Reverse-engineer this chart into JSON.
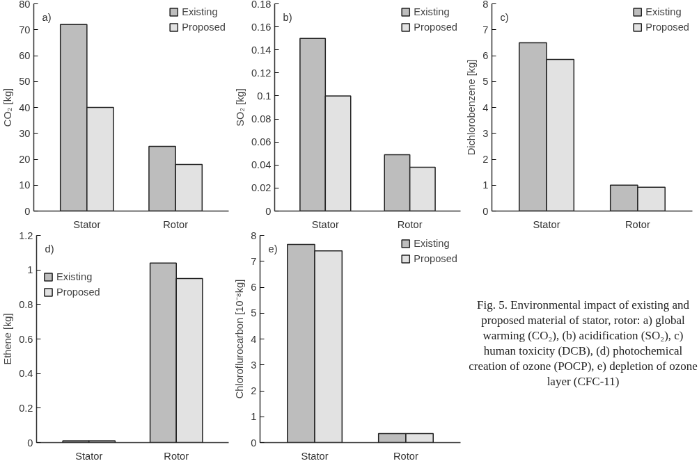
{
  "chart_data": [
    {
      "type": "bar",
      "categories": [
        "Stator",
        "Rotor"
      ],
      "ylabel": "CO₂ [kg]",
      "ylim": [
        0,
        80
      ],
      "yticks": [
        0,
        10,
        20,
        30,
        40,
        50,
        60,
        70,
        80
      ],
      "grid": false,
      "legend": "top right",
      "annotations": [
        "a)"
      ],
      "series": [
        {
          "name": "Existing",
          "color": "#bdbdbd",
          "values": [
            72,
            25
          ]
        },
        {
          "name": "Proposed",
          "color": "#e2e2e2",
          "values": [
            40,
            18
          ]
        }
      ]
    },
    {
      "type": "bar",
      "categories": [
        "Stator",
        "Rotor"
      ],
      "ylabel": "SO₂ [kg]",
      "ylim": [
        0,
        0.18
      ],
      "yticks": [
        0,
        0.02,
        0.04,
        0.06,
        0.08,
        0.1,
        0.12,
        0.14,
        0.16,
        0.18
      ],
      "grid": false,
      "legend": "top right",
      "annotations": [
        "b)"
      ],
      "series": [
        {
          "name": "Existing",
          "color": "#bdbdbd",
          "values": [
            0.15,
            0.049
          ]
        },
        {
          "name": "Proposed",
          "color": "#e2e2e2",
          "values": [
            0.1,
            0.038
          ]
        }
      ]
    },
    {
      "type": "bar",
      "categories": [
        "Stator",
        "Rotor"
      ],
      "ylabel": "Dichlorobenzene [kg]",
      "ylim": [
        0,
        8
      ],
      "yticks": [
        0,
        1,
        2,
        3,
        4,
        5,
        6,
        7,
        8
      ],
      "grid": false,
      "legend": "top right",
      "annotations": [
        "c)"
      ],
      "series": [
        {
          "name": "Existing",
          "color": "#bdbdbd",
          "values": [
            6.5,
            1.0
          ]
        },
        {
          "name": "Proposed",
          "color": "#e2e2e2",
          "values": [
            5.85,
            0.92
          ]
        }
      ]
    },
    {
      "type": "bar",
      "categories": [
        "Stator",
        "Rotor"
      ],
      "ylabel": "Ethene [kg]",
      "ylim": [
        0,
        1.2
      ],
      "yticks": [
        0,
        0.2,
        0.4,
        0.6,
        0.8,
        1,
        1.2
      ],
      "grid": false,
      "legend": "top left",
      "annotations": [
        "d)"
      ],
      "series": [
        {
          "name": "Existing",
          "color": "#bdbdbd",
          "values": [
            0.01,
            1.04
          ]
        },
        {
          "name": "Proposed",
          "color": "#e2e2e2",
          "values": [
            0.01,
            0.95
          ]
        }
      ]
    },
    {
      "type": "bar",
      "categories": [
        "Stator",
        "Rotor"
      ],
      "ylabel": "Chloroflurocarbon [10⁻⁸kg]",
      "ylim": [
        0,
        8
      ],
      "yticks": [
        0,
        1,
        2,
        3,
        4,
        5,
        6,
        7,
        8
      ],
      "grid": false,
      "legend": "top right",
      "annotations": [
        "e)"
      ],
      "series": [
        {
          "name": "Existing",
          "color": "#bdbdbd",
          "values": [
            7.65,
            0.35
          ]
        },
        {
          "name": "Proposed",
          "color": "#e2e2e2",
          "values": [
            7.4,
            0.35
          ]
        }
      ]
    },
    {
      "type": "other",
      "annotations": [
        "Fig. 5. Environmental impact of existing and proposed material of stator, rotor: a) global warming (CO₂), (b) acidification (SO₂), c) human toxicity (DCB), (d) photochemical creation of ozone (POCP), e) depletion of ozone layer (CFC-11)"
      ]
    }
  ]
}
